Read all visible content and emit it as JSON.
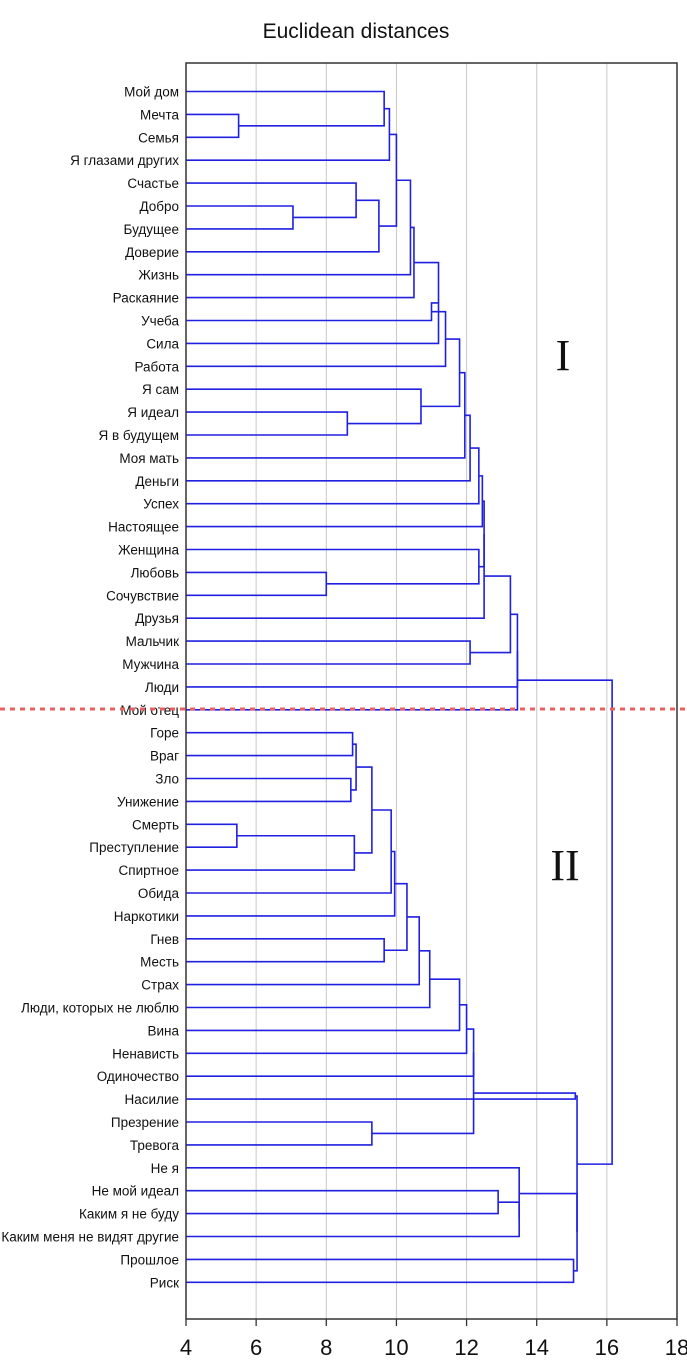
{
  "chart_data": {
    "type": "dendrogram",
    "title": "Euclidean distances",
    "xlim": [
      4,
      18
    ],
    "x_ticks": [
      4,
      6,
      8,
      10,
      12,
      14,
      16,
      18
    ],
    "grid": true,
    "line_color": "#2020e0",
    "cut_line_color": "#e86060",
    "leaves": [
      "Мой дом",
      "Мечта",
      "Семья",
      "Я глазами других",
      "Счастье",
      "Добро",
      "Будущее",
      "Доверие",
      "Жизнь",
      "Раскаяние",
      "Учеба",
      "Сила",
      "Работа",
      "Я сам",
      "Я идеал",
      "Я в будущем",
      "Моя мать",
      "Деньги",
      "Успех",
      "Настоящее",
      "Женщина",
      "Любовь",
      "Сочувствие",
      "Друзья",
      "Мальчик",
      "Мужчина",
      "Люди",
      "Мой отец",
      "Горе",
      "Враг",
      "Зло",
      "Унижение",
      "Смерть",
      "Преступление",
      "Спиртное",
      "Обида",
      "Наркотики",
      "Гнев",
      "Месть",
      "Страх",
      "Люди, которых не люблю",
      "Вина",
      "Ненависть",
      "Одиночество",
      "Насилие",
      "Презрение",
      "Тревога",
      "Не я",
      "Не мой идеал",
      "Каким я не буду",
      "Каким меня не видят другие",
      "Прошлое",
      "Риск"
    ],
    "merges": [
      [
        1,
        2,
        5.5
      ],
      [
        0,
        "m0",
        9.65
      ],
      [
        "m1",
        3,
        9.8
      ],
      [
        5,
        6,
        7.05
      ],
      [
        4,
        "m3",
        8.85
      ],
      [
        "m4",
        7,
        9.5
      ],
      [
        "m2",
        "m5",
        10.0
      ],
      [
        "m6",
        8,
        10.4
      ],
      [
        "m7",
        9,
        10.5
      ],
      [
        "m8",
        11,
        11.2
      ],
      [
        10,
        "m9",
        11.0
      ],
      [
        "m10",
        12,
        11.4
      ],
      [
        14,
        15,
        8.6
      ],
      [
        13,
        "m12",
        10.7
      ],
      [
        "m11",
        "m13",
        11.8
      ],
      [
        "m14",
        16,
        11.95
      ],
      [
        "m15",
        17,
        12.1
      ],
      [
        "m16",
        18,
        12.35
      ],
      [
        "m17",
        19,
        12.45
      ],
      [
        21,
        22,
        8.0
      ],
      [
        20,
        "m19",
        12.35
      ],
      [
        "m18",
        "m20",
        12.5
      ],
      [
        "m21",
        23,
        12.5
      ],
      [
        24,
        25,
        12.1
      ],
      [
        "m22",
        "m23",
        13.25
      ],
      [
        "m24",
        26,
        13.45
      ],
      [
        "m25",
        27,
        13.45
      ],
      [
        28,
        29,
        8.75
      ],
      [
        30,
        31,
        8.7
      ],
      [
        "m27",
        "m28",
        8.85
      ],
      [
        32,
        33,
        5.45
      ],
      [
        "m30",
        34,
        8.8
      ],
      [
        "m29",
        "m31",
        9.3
      ],
      [
        "m32",
        35,
        9.85
      ],
      [
        "m33",
        36,
        9.95
      ],
      [
        37,
        38,
        9.65
      ],
      [
        "m34",
        "m35",
        10.3
      ],
      [
        "m36",
        39,
        10.65
      ],
      [
        "m37",
        40,
        10.95
      ],
      [
        "m38",
        41,
        11.8
      ],
      [
        "m39",
        42,
        12.0
      ],
      [
        "m40",
        43,
        12.2
      ],
      [
        45,
        46,
        9.3
      ],
      [
        "m41",
        "m42",
        12.2
      ],
      [
        "m43",
        44,
        15.1
      ],
      [
        48,
        49,
        12.9
      ],
      [
        "m45",
        50,
        13.5
      ],
      [
        47,
        "m46",
        13.5
      ],
      [
        51,
        52,
        15.05
      ],
      [
        "m47",
        "m48",
        15.15
      ],
      [
        "m44",
        "m49",
        15.15
      ],
      [
        "m26",
        "m50",
        16.15
      ]
    ],
    "annotations": [
      {
        "text": "I"
      },
      {
        "text": "II"
      }
    ]
  }
}
